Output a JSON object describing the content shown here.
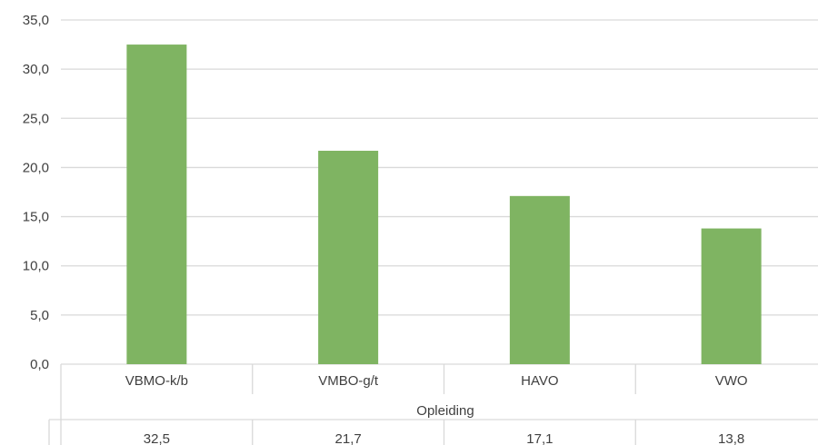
{
  "chart_data": {
    "type": "bar",
    "categories": [
      "VBMO-k/b",
      "VMBO-g/t",
      "HAVO",
      "VWO"
    ],
    "values": [
      32.5,
      21.7,
      17.1,
      13.8
    ],
    "value_labels": [
      "32,5",
      "21,7",
      "17,1",
      "13,8"
    ],
    "xlabel": "Opleiding",
    "ylim": [
      0,
      35
    ],
    "yticks": [
      0,
      5,
      10,
      15,
      20,
      25,
      30,
      35
    ],
    "ytick_labels": [
      "0,0",
      "5,0",
      "10,0",
      "15,0",
      "20,0",
      "25,0",
      "30,0",
      "35,0"
    ],
    "grid": true,
    "data_table": true,
    "colors": {
      "bar": "#7fb462",
      "grid": "#d9d9d9",
      "text": "#404040"
    }
  }
}
